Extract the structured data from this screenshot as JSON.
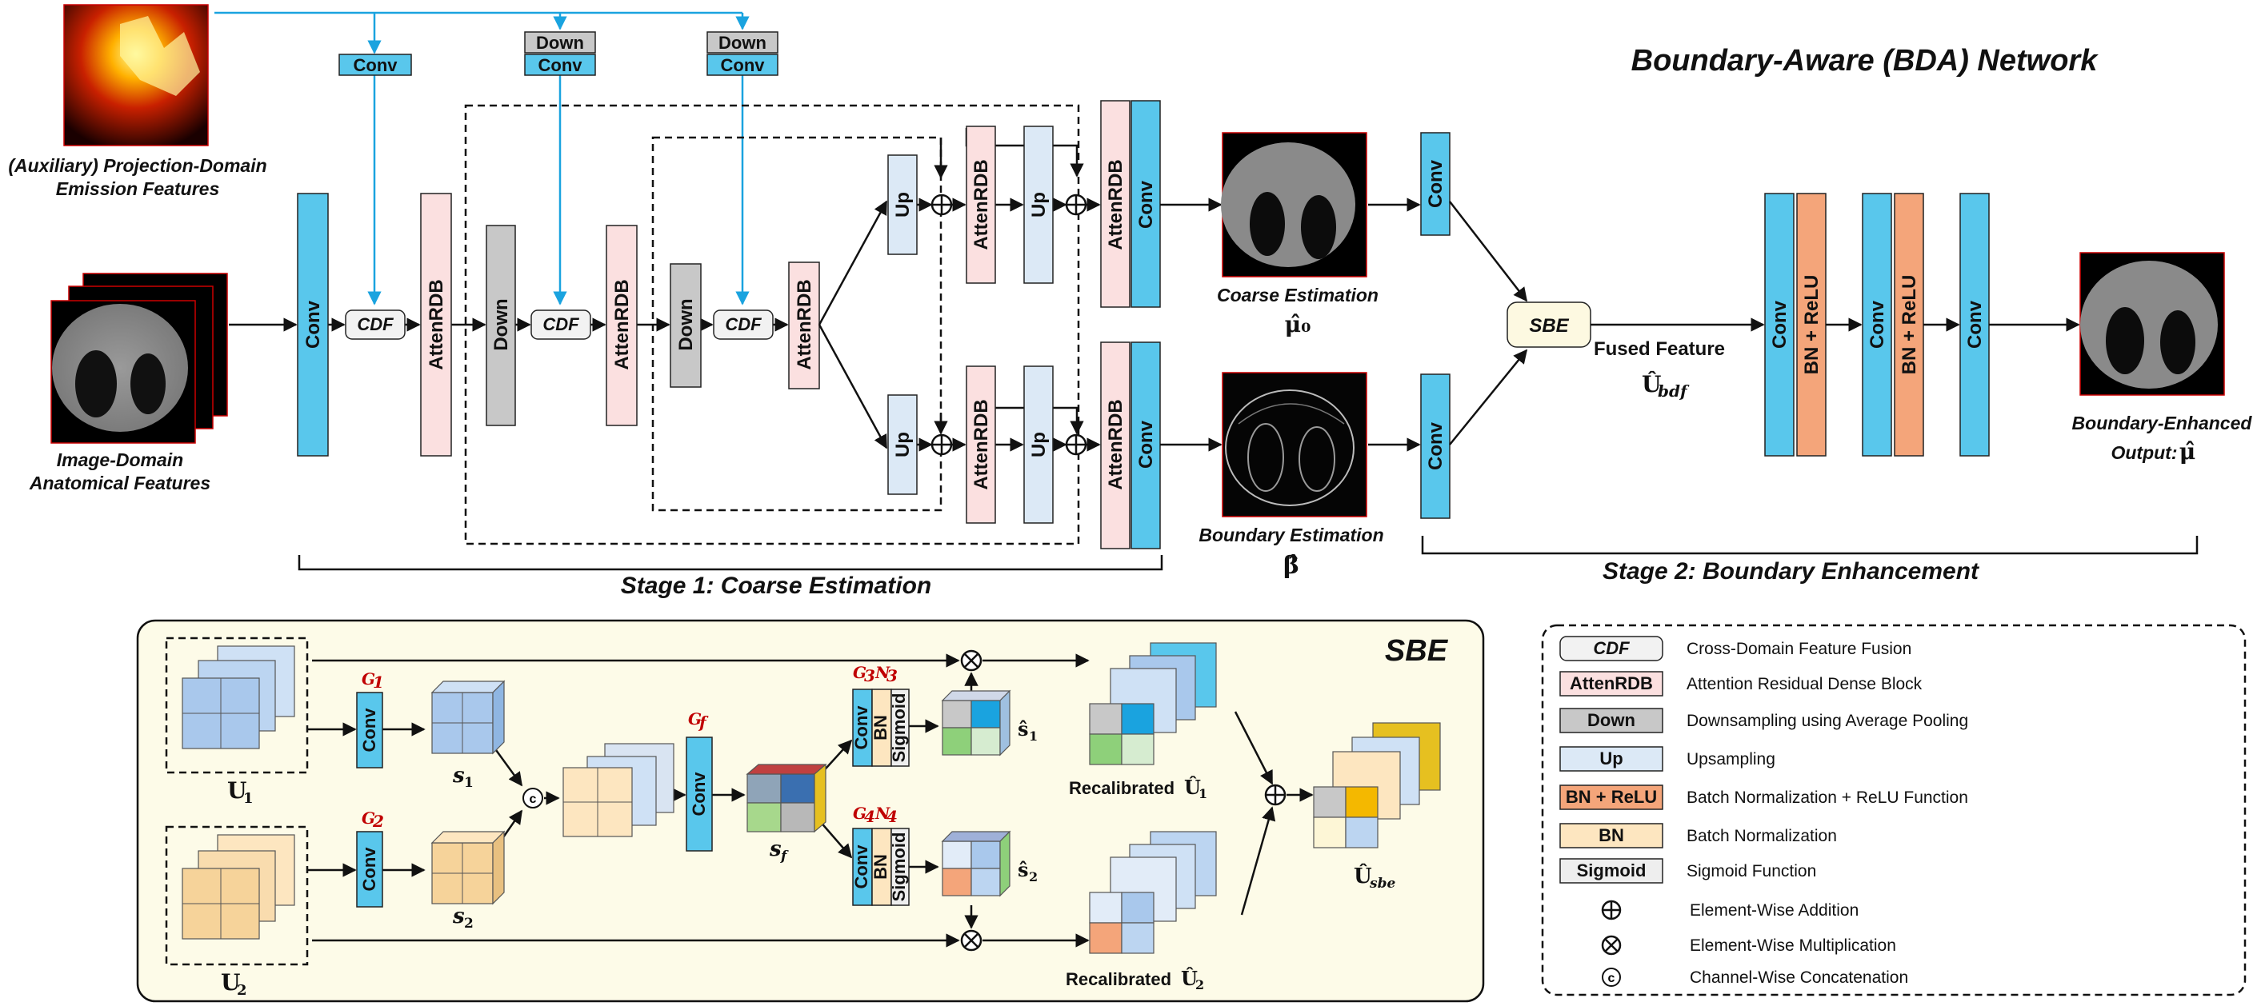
{
  "title": "Boundary-Aware (BDA) Network",
  "inputs": {
    "auxiliary_caption_1": "(Auxiliary) Projection-Domain",
    "auxiliary_caption_2": "Emission Features",
    "image_caption_1": "Image-Domain",
    "image_caption_2": "Anatomical Features"
  },
  "blocks": {
    "conv": "Conv",
    "down": "Down",
    "up": "Up",
    "cdf": "CDF",
    "attenrdb": "AttenRDB",
    "sbe": "SBE",
    "bnrelu": "BN + ReLU",
    "bn": "BN",
    "sigmoid": "Sigmoid"
  },
  "outputs": {
    "coarse_caption": "Coarse  Estimation",
    "coarse_symbol": "μ̂₀",
    "boundary_caption": "Boundary  Estimation",
    "boundary_symbol": "β̂",
    "fused_caption": "Fused Feature",
    "fused_symbol": "Û",
    "fused_sub": "bdf",
    "final_caption_1": "Boundary-Enhanced",
    "final_caption_2": "Output:",
    "final_symbol": "μ̂"
  },
  "stages": {
    "stage1": "Stage 1: Coarse Estimation",
    "stage2": "Stage 2: Boundary Enhancement"
  },
  "sbe_panel": {
    "title": "SBE",
    "u1": "U",
    "u1_sub": "1",
    "u2": "U",
    "u2_sub": "2",
    "s1": "s",
    "s1_sub": "1",
    "s2": "s",
    "s2_sub": "2",
    "sf": "s",
    "sf_sub": "f",
    "s1hat": "ŝ",
    "s1hat_sub": "1",
    "s2hat": "ŝ",
    "s2hat_sub": "2",
    "g1": "G",
    "g1_sub": "1",
    "g2": "G",
    "g2_sub": "2",
    "gf": "G",
    "gf_sub": "f",
    "g3": "G",
    "g3_sub": "3",
    "n3": "N",
    "n3_sub": "3",
    "g4": "G",
    "g4_sub": "4",
    "n4": "N",
    "n4_sub": "4",
    "recal1": "Recalibrated",
    "recal1_sym": "Û",
    "recal1_sub": "1",
    "recal2": "Recalibrated",
    "recal2_sym": "Û",
    "recal2_sub": "2",
    "usbe": "Û",
    "usbe_sub": "sbe",
    "concat": "c"
  },
  "legend": [
    {
      "key": "CDF",
      "text": "Cross-Domain Feature Fusion"
    },
    {
      "key": "AttenRDB",
      "text": "Attention Residual Dense Block"
    },
    {
      "key": "Down",
      "text": "Downsampling using Average Pooling"
    },
    {
      "key": "Up",
      "text": "Upsampling"
    },
    {
      "key": "BN + ReLU",
      "text": "Batch Normalization + ReLU Function"
    },
    {
      "key": "BN",
      "text": "Batch Normalization"
    },
    {
      "key": "Sigmoid",
      "text": "Sigmoid Function"
    },
    {
      "key": "⊕",
      "text": "Element-Wise Addition"
    },
    {
      "key": "⊗",
      "text": "Element-Wise Multiplication"
    },
    {
      "key": "c",
      "text": "Channel-Wise Concatenation"
    }
  ],
  "colors": {
    "conv": "#59c7ec",
    "down": "#c8c8c8",
    "up": "#dce9f6",
    "attenrdb": "#fbe0e0",
    "bnrelu": "#f4a57a",
    "bn": "#fde6c0",
    "sigmoid": "#eeeeee",
    "cdf": "#f2f2f2",
    "sbe": "#fdf9e1",
    "arrow_blue": "#1aa3df",
    "panel_bg": "#fdfbe8"
  }
}
